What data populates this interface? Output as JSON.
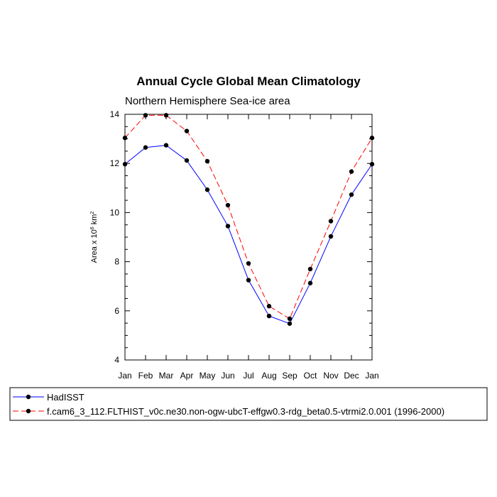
{
  "chart_data": {
    "type": "line",
    "title": "Annual Cycle Global Mean Climatology",
    "subtitle": "Northern Hemisphere Sea-ice area",
    "ylabel": {
      "prefix": "Area x 10",
      "exp1": "6",
      "mid": " km",
      "exp2": "2"
    },
    "xlabel": "",
    "categories": [
      "Jan",
      "Feb",
      "Mar",
      "Apr",
      "May",
      "Jun",
      "Jul",
      "Aug",
      "Sep",
      "Oct",
      "Nov",
      "Dec",
      "Jan"
    ],
    "ylim": [
      4,
      14
    ],
    "yticks": [
      4,
      6,
      8,
      10,
      12,
      14
    ],
    "series": [
      {
        "name": "HadISST",
        "color": "#0000ff",
        "dash": "solid",
        "values": [
          11.97,
          12.65,
          12.74,
          12.12,
          10.93,
          9.45,
          7.25,
          5.79,
          5.48,
          7.13,
          9.03,
          10.73,
          11.97
        ]
      },
      {
        "name": "f.cam6_3_112.FLTHIST_v0c.ne30.non-ogw-ubcT-effgw0.3-rdg_beta0.5-vtrmi2.0.001 (1996-2000)",
        "color": "#ff0000",
        "dash": "dashed",
        "values": [
          13.04,
          13.96,
          13.96,
          13.32,
          12.09,
          10.3,
          7.93,
          6.19,
          5.68,
          7.7,
          9.65,
          11.67,
          13.04
        ]
      }
    ],
    "legend_position": "bottom",
    "marker_color": "#000000"
  }
}
